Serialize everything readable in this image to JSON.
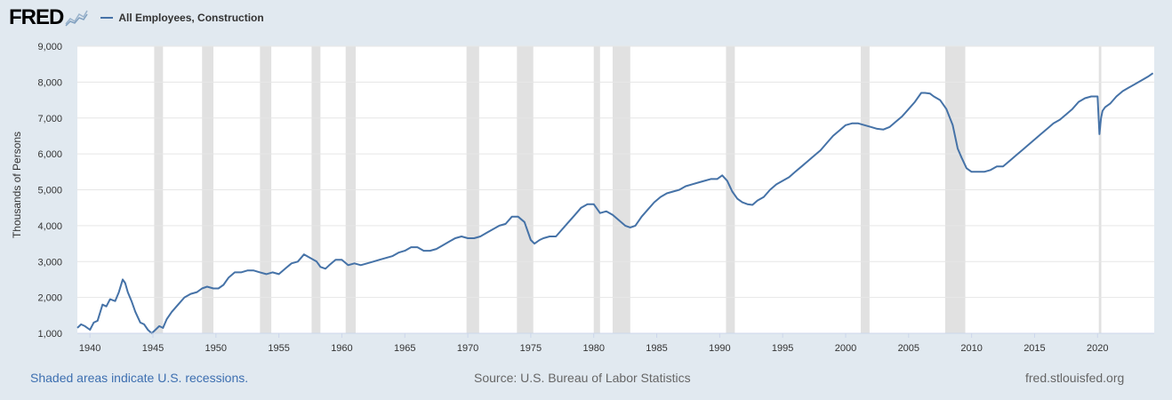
{
  "header": {
    "logo_text": "FRED",
    "logo_icon": "fred-chart-icon",
    "legend_label": "All Employees, Construction"
  },
  "footer": {
    "recession_note": "Shaded areas indicate U.S. recessions.",
    "source": "Source: U.S. Bureau of Labor Statistics",
    "url": "fred.stlouisfed.org"
  },
  "colors": {
    "background": "#e1e9f0",
    "plot_background": "#ffffff",
    "line": "#4572a7",
    "recession": "#e1e1e1",
    "gridline": "#e6e6e6"
  },
  "chart_data": {
    "type": "line",
    "ylabel": "Thousands of Persons",
    "xlim": [
      1939.0,
      2024.5
    ],
    "ylim": [
      1000,
      9000
    ],
    "y_ticks": [
      1000,
      2000,
      3000,
      4000,
      5000,
      6000,
      7000,
      8000,
      9000
    ],
    "y_tick_labels": [
      "1,000",
      "2,000",
      "3,000",
      "4,000",
      "5,000",
      "6,000",
      "7,000",
      "8,000",
      "9,000"
    ],
    "x_ticks": [
      1940,
      1945,
      1950,
      1955,
      1960,
      1965,
      1970,
      1975,
      1980,
      1985,
      1990,
      1995,
      2000,
      2005,
      2010,
      2015,
      2020
    ],
    "x_tick_labels": [
      "1940",
      "1945",
      "1950",
      "1955",
      "1960",
      "1965",
      "1970",
      "1975",
      "1980",
      "1985",
      "1990",
      "1995",
      "2000",
      "2005",
      "2010",
      "2015",
      "2020"
    ],
    "grid": "horizontal",
    "recessions": [
      [
        1945.1,
        1945.8
      ],
      [
        1948.9,
        1949.8
      ],
      [
        1953.5,
        1954.4
      ],
      [
        1957.6,
        1958.3
      ],
      [
        1960.3,
        1961.1
      ],
      [
        1969.9,
        1970.9
      ],
      [
        1973.9,
        1975.2
      ],
      [
        1980.0,
        1980.5
      ],
      [
        1981.5,
        1982.9
      ],
      [
        1990.5,
        1991.2
      ],
      [
        2001.2,
        2001.9
      ],
      [
        2007.9,
        2009.5
      ],
      [
        2020.1,
        2020.3
      ]
    ],
    "series": [
      {
        "name": "All Employees, Construction",
        "x": [
          1939.0,
          1939.3,
          1939.6,
          1940.0,
          1940.3,
          1940.6,
          1941.0,
          1941.3,
          1941.6,
          1942.0,
          1942.3,
          1942.6,
          1942.8,
          1943.0,
          1943.3,
          1943.6,
          1944.0,
          1944.3,
          1944.6,
          1944.9,
          1945.2,
          1945.5,
          1945.8,
          1946.1,
          1946.5,
          1947.0,
          1947.5,
          1948.0,
          1948.5,
          1948.9,
          1949.3,
          1949.8,
          1950.2,
          1950.6,
          1951.0,
          1951.5,
          1952.0,
          1952.5,
          1953.0,
          1953.5,
          1954.0,
          1954.5,
          1955.0,
          1955.5,
          1956.0,
          1956.5,
          1957.0,
          1957.5,
          1958.0,
          1958.3,
          1958.7,
          1959.0,
          1959.5,
          1960.0,
          1960.5,
          1961.0,
          1961.5,
          1962.0,
          1962.5,
          1963.0,
          1963.5,
          1964.0,
          1964.5,
          1965.0,
          1965.5,
          1966.0,
          1966.5,
          1967.0,
          1967.5,
          1968.0,
          1968.5,
          1969.0,
          1969.5,
          1970.0,
          1970.5,
          1971.0,
          1971.5,
          1972.0,
          1972.5,
          1973.0,
          1973.5,
          1974.0,
          1974.5,
          1975.0,
          1975.3,
          1975.7,
          1976.0,
          1976.5,
          1977.0,
          1977.5,
          1978.0,
          1978.5,
          1979.0,
          1979.5,
          1980.0,
          1980.5,
          1981.0,
          1981.5,
          1982.0,
          1982.5,
          1982.9,
          1983.3,
          1983.8,
          1984.3,
          1984.8,
          1985.3,
          1985.8,
          1986.3,
          1986.8,
          1987.3,
          1987.8,
          1988.3,
          1988.8,
          1989.3,
          1989.8,
          1990.2,
          1990.6,
          1991.0,
          1991.4,
          1991.8,
          1992.2,
          1992.6,
          1993.0,
          1993.5,
          1994.0,
          1994.5,
          1995.0,
          1995.5,
          1996.0,
          1996.5,
          1997.0,
          1997.5,
          1998.0,
          1998.5,
          1999.0,
          1999.5,
          2000.0,
          2000.5,
          2001.0,
          2001.5,
          2002.0,
          2002.5,
          2003.0,
          2003.5,
          2004.0,
          2004.5,
          2005.0,
          2005.5,
          2006.0,
          2006.3,
          2006.7,
          2007.0,
          2007.5,
          2008.0,
          2008.5,
          2008.9,
          2009.2,
          2009.6,
          2010.0,
          2010.5,
          2011.0,
          2011.5,
          2012.0,
          2012.5,
          2013.0,
          2013.5,
          2014.0,
          2014.5,
          2015.0,
          2015.5,
          2016.0,
          2016.5,
          2017.0,
          2017.5,
          2018.0,
          2018.5,
          2019.0,
          2019.5,
          2020.0,
          2020.15,
          2020.28,
          2020.4,
          2020.6,
          2021.0,
          2021.5,
          2022.0,
          2022.5,
          2023.0,
          2023.5,
          2024.0,
          2024.4
        ],
        "values": [
          1150,
          1250,
          1200,
          1100,
          1300,
          1350,
          1800,
          1750,
          1950,
          1900,
          2150,
          2500,
          2400,
          2150,
          1900,
          1600,
          1300,
          1250,
          1100,
          1000,
          1100,
          1200,
          1150,
          1400,
          1600,
          1800,
          2000,
          2100,
          2150,
          2250,
          2300,
          2250,
          2250,
          2350,
          2550,
          2700,
          2700,
          2750,
          2750,
          2700,
          2650,
          2700,
          2650,
          2800,
          2950,
          3000,
          3200,
          3100,
          3000,
          2850,
          2800,
          2900,
          3050,
          3050,
          2900,
          2950,
          2900,
          2950,
          3000,
          3050,
          3100,
          3150,
          3250,
          3300,
          3400,
          3400,
          3300,
          3300,
          3350,
          3450,
          3550,
          3650,
          3700,
          3650,
          3650,
          3700,
          3800,
          3900,
          4000,
          4050,
          4250,
          4250,
          4100,
          3600,
          3500,
          3600,
          3650,
          3700,
          3700,
          3900,
          4100,
          4300,
          4500,
          4600,
          4600,
          4350,
          4400,
          4300,
          4150,
          4000,
          3950,
          4000,
          4250,
          4450,
          4650,
          4800,
          4900,
          4950,
          5000,
          5100,
          5150,
          5200,
          5250,
          5300,
          5300,
          5400,
          5250,
          4950,
          4750,
          4650,
          4600,
          4580,
          4700,
          4800,
          5000,
          5150,
          5250,
          5350,
          5500,
          5650,
          5800,
          5950,
          6100,
          6300,
          6500,
          6650,
          6800,
          6850,
          6850,
          6800,
          6750,
          6700,
          6680,
          6750,
          6900,
          7050,
          7250,
          7450,
          7700,
          7700,
          7680,
          7600,
          7500,
          7250,
          6800,
          6150,
          5900,
          5600,
          5500,
          5500,
          5500,
          5550,
          5650,
          5650,
          5800,
          5950,
          6100,
          6250,
          6400,
          6550,
          6700,
          6850,
          6950,
          7100,
          7250,
          7450,
          7550,
          7600,
          7600,
          6550,
          7000,
          7200,
          7300,
          7400,
          7600,
          7750,
          7850,
          7950,
          8050,
          8150,
          8250
        ]
      }
    ]
  }
}
